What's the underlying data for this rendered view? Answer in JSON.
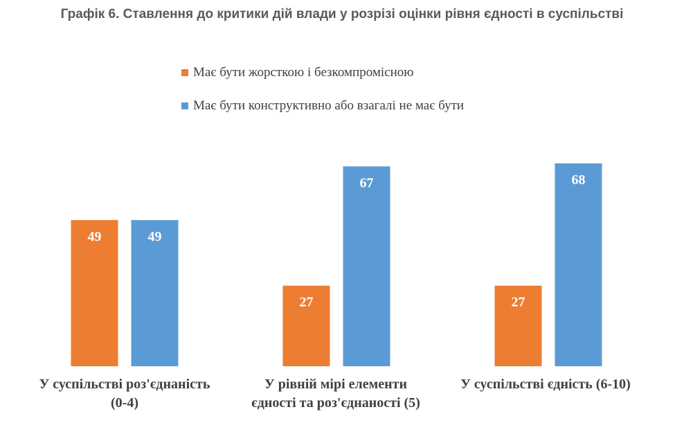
{
  "chart_data": {
    "type": "bar",
    "title": "Графік 6. Ставлення до критики дій влади у розрізі оцінки рівня єдності в суспільстві",
    "categories": [
      "У суспільстві роз'єднаність (0-4)",
      "У рівній мірі елементи єдності та роз'єднаності (5)",
      "У суспільстві єдність (6-10)"
    ],
    "category_lines": [
      [
        "У суспільстві роз'єднаність",
        "(0-4)"
      ],
      [
        "У рівній мірі елементи",
        "єдності та роз'єднаності (5)"
      ],
      [
        "У суспільстві єдність (6-10)"
      ]
    ],
    "series": [
      {
        "name": "Має бути жорсткою і безкомпромісною",
        "color": "#ED7D31",
        "values": [
          49,
          27,
          27
        ]
      },
      {
        "name": "Має бути конструктивно або взагалі не має бути",
        "color": "#5B9BD5",
        "values": [
          49,
          67,
          68
        ]
      }
    ],
    "data_labels": true,
    "legend_position": "top",
    "grid": false
  }
}
